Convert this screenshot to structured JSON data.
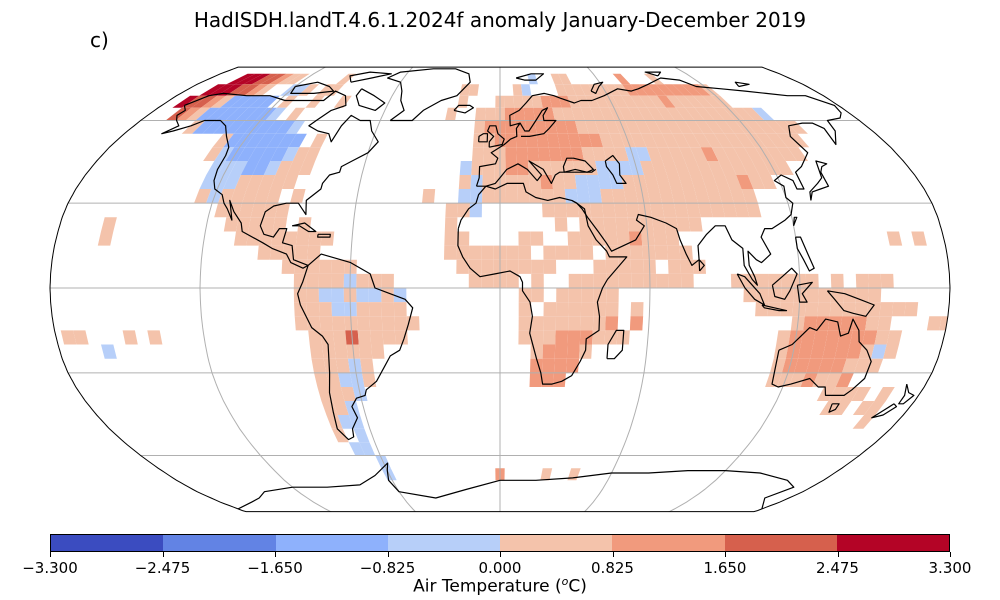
{
  "title": "HadISDH.landT.4.6.1.2024f anomaly January-December 2019",
  "panel_label": "c)",
  "colorbar": {
    "label_main": "Air Temperature (",
    "label_sup": "o",
    "label_end": "C)",
    "ticks": [
      "−3.300",
      "−2.475",
      "−1.650",
      "−0.825",
      "0.000",
      "0.825",
      "1.650",
      "2.475",
      "3.300"
    ],
    "colors": [
      "#3b4cc0",
      "#6283e4",
      "#8eb1fc",
      "#b7cff9",
      "#f4c3ab",
      "#f19a7d",
      "#d6604d",
      "#b40426"
    ]
  },
  "map": {
    "projection": "Robinson",
    "graticule": "on",
    "cell_colors": {
      "-2": "#8eb1fc",
      "-1": "#b7cff9",
      "1": "#f4c3ab",
      "2": "#f19a7d",
      "3": "#d6604d",
      "4": "#b40426"
    }
  }
}
